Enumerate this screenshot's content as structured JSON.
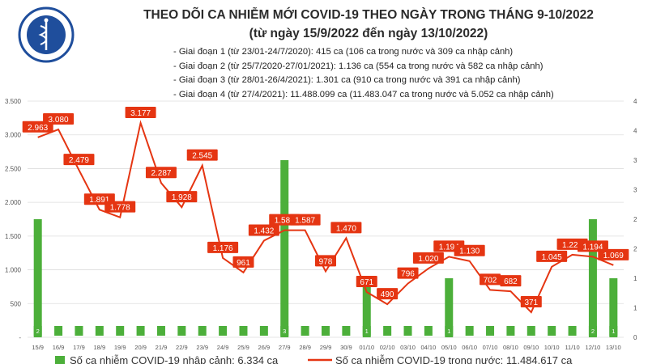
{
  "header": {
    "logo_text": "BỘ Y TẾ",
    "logo_subtext": "MINISTRY OF HEALTH",
    "title_line1": "THEO DÕI CA NHIỄM MỚI COVID-19 THEO NGÀY TRONG THÁNG 9-10/2022",
    "title_line2": "(từ ngày 15/9/2022 đến ngày 13/10/2022)"
  },
  "notes": [
    "- Giai đoạn 1 (từ 23/01-24/7/2020): 415 ca (106 ca trong nước và 309 ca nhập cảnh)",
    "- Giai đoạn 2 (từ 25/7/2020-27/01/2021): 1.136 ca (554 ca trong nước và 582 ca nhập cảnh)",
    "- Giai đoạn 3 (từ 28/01-26/4/2021): 1.301 ca (910 ca trong nước và 391 ca nhập cảnh)",
    "- Giai đoạn 4 (từ 27/4/2021): 11.488.099 ca (11.483.047 ca trong nước và 5.052 ca nhập cảnh)"
  ],
  "colors": {
    "bar": "#4caf3a",
    "line": "#e53512",
    "label_bg": "#e53512",
    "grid": "#dddddd",
    "axis_text": "#555555"
  },
  "chart_data": {
    "type": "bar+line",
    "categories": [
      "15/9",
      "16/9",
      "17/9",
      "18/9",
      "19/9",
      "20/9",
      "21/9",
      "22/9",
      "23/9",
      "24/9",
      "25/9",
      "26/9",
      "27/9",
      "28/9",
      "29/9",
      "30/9",
      "01/10",
      "02/10",
      "03/10",
      "04/10",
      "05/10",
      "06/10",
      "07/10",
      "08/10",
      "09/10",
      "10/10",
      "11/10",
      "12/10",
      "13/10"
    ],
    "y_left": {
      "ticks": [
        "-",
        "500",
        "1.000",
        "1.500",
        "2.000",
        "2.500",
        "3.000",
        "3.500"
      ],
      "min": 0,
      "max": 3500
    },
    "y_right": {
      "ticks": [
        "0",
        "1",
        "1",
        "2",
        "2",
        "3",
        "3",
        "4",
        "4"
      ],
      "min": 0,
      "max": 4
    },
    "series": [
      {
        "name": "Số ca nhiễm COVID-19 nhập cảnh: 6.334 ca",
        "type": "bar",
        "axis": "right",
        "values": [
          2,
          0,
          0,
          0,
          0,
          0,
          0,
          0,
          0,
          0,
          0,
          0,
          3,
          0,
          0,
          0,
          1,
          0,
          0,
          0,
          1,
          0,
          0,
          0,
          0,
          0,
          0,
          2,
          1
        ],
        "labels": [
          "2",
          "",
          "",
          "",
          "",
          "",
          "",
          "",
          "",
          "",
          "",
          "",
          "3",
          "",
          "",
          "",
          "1",
          "",
          "",
          "",
          "1",
          "",
          "",
          "",
          "",
          "",
          "",
          "2",
          "1"
        ]
      },
      {
        "name": "Số ca nhiễm COVID-19 trong nước: 11.484.617 ca",
        "type": "line",
        "axis": "left",
        "values": [
          2963,
          3080,
          2479,
          1891,
          1778,
          3177,
          2287,
          1928,
          2545,
          1176,
          961,
          1432,
          1587,
          1587,
          978,
          1470,
          671,
          490,
          796,
          1020,
          1194,
          1130,
          702,
          682,
          371,
          1045,
          1224,
          1194,
          1069
        ],
        "labels": [
          "2.963",
          "3.080",
          "2.479",
          "1.891",
          "1.778",
          "3.177",
          "2.287",
          "1.928",
          "2.545",
          "1.176",
          "961",
          "1.432",
          "1.587",
          "1.587",
          "978",
          "1.470",
          "671",
          "490",
          "796",
          "1.020",
          "1.194",
          "1.130",
          "702",
          "682",
          "371",
          "1.045",
          "1.224",
          "1.194",
          "1.069"
        ]
      }
    ]
  }
}
